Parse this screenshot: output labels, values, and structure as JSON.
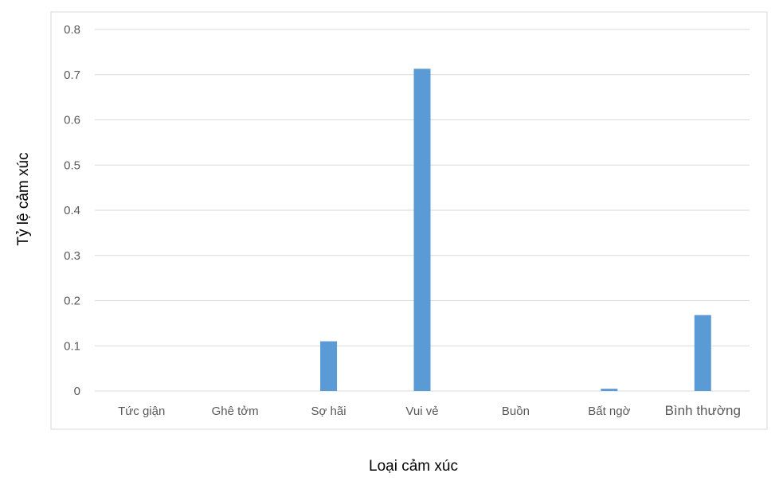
{
  "chart_data": {
    "type": "bar",
    "categories": [
      "Tức giận",
      "Ghê tởm",
      "Sợ hãi",
      "Vui vẻ",
      "Buồn",
      "Bất ngờ",
      "Bình thường"
    ],
    "values": [
      0,
      0,
      0.11,
      0.713,
      0,
      0.005,
      0.168
    ],
    "xlabel": "Loại cảm xúc",
    "ylabel": "Tỷ lệ cảm xúc",
    "ylim": [
      0,
      0.8
    ],
    "yticks": [
      "0",
      "0.1",
      "0.2",
      "0.3",
      "0.4",
      "0.5",
      "0.6",
      "0.7",
      "0.8"
    ],
    "grid": true,
    "legend": "none",
    "bar_color": "#5b9bd5",
    "grid_color": "#d9d9d9"
  }
}
